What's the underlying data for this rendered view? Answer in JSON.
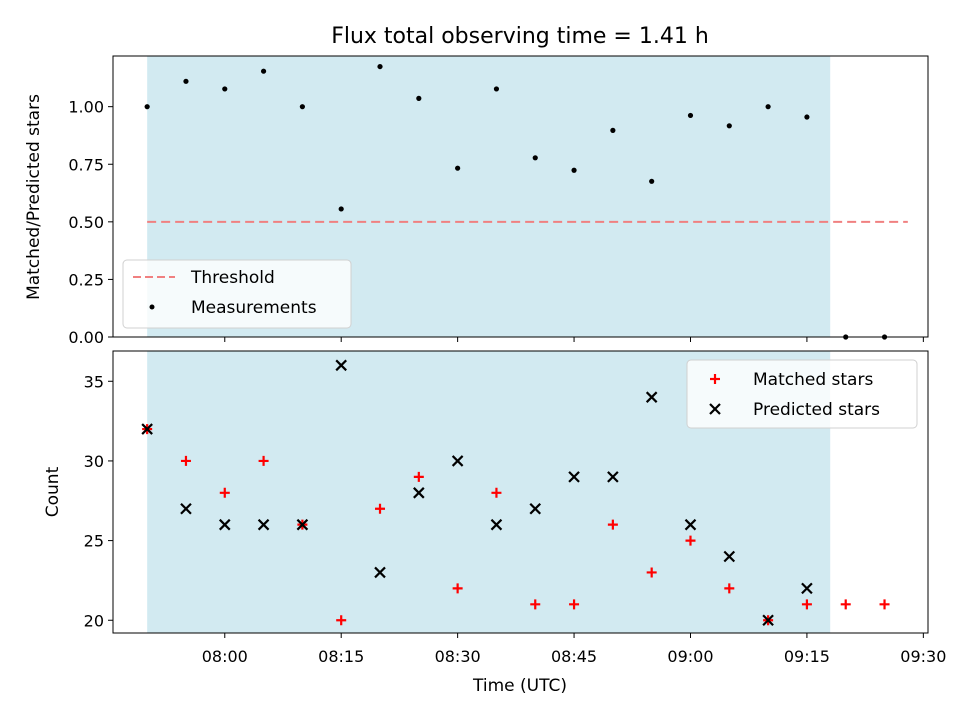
{
  "figure": {
    "title": "Flux total observing time = 1.41 h",
    "xlabel": "Time (UTC)",
    "x_ticks": [
      "08:00",
      "08:15",
      "08:30",
      "08:45",
      "09:00",
      "09:15",
      "09:30"
    ]
  },
  "chart_data": [
    {
      "type": "scatter",
      "title": "Flux total observing time = 1.41 h",
      "ylabel": "Matched/Predicted stars",
      "y_ticks": [
        "0.00",
        "0.25",
        "0.50",
        "0.75",
        "1.00"
      ],
      "ylim": [
        0.0,
        1.22
      ],
      "xlim_minutes_after_0730": [
        15.6,
        120.6
      ],
      "shaded_span": {
        "from": "07:50",
        "to": "09:18",
        "color": "#add8e6"
      },
      "series": [
        {
          "name": "Threshold",
          "style": "dashed line",
          "color": "#f08080",
          "x": [
            "07:50",
            "09:28"
          ],
          "y": [
            0.5,
            0.5
          ]
        },
        {
          "name": "Measurements",
          "style": "points",
          "color": "#000000",
          "x": [
            "07:50",
            "07:55",
            "08:00",
            "08:05",
            "08:10",
            "08:15",
            "08:20",
            "08:25",
            "08:30",
            "08:35",
            "08:40",
            "08:45",
            "08:50",
            "08:55",
            "09:00",
            "09:05",
            "09:10",
            "09:15",
            "09:20",
            "09:25"
          ],
          "y": [
            1.0,
            1.11,
            1.077,
            1.154,
            1.0,
            0.556,
            1.174,
            1.036,
            0.733,
            1.077,
            0.778,
            0.724,
            0.897,
            0.676,
            0.962,
            0.917,
            1.0,
            0.955,
            0.0,
            0.0
          ]
        }
      ],
      "legend": {
        "placement": "lower-left",
        "labels": [
          "Threshold",
          "Measurements"
        ]
      }
    },
    {
      "type": "scatter",
      "ylabel": "Count",
      "y_ticks": [
        "20",
        "25",
        "30",
        "35"
      ],
      "ylim": [
        19.2,
        36.9
      ],
      "xlim_minutes_after_0730": [
        15.6,
        120.6
      ],
      "shaded_span": {
        "from": "07:50",
        "to": "09:18",
        "color": "#add8e6"
      },
      "series": [
        {
          "name": "Matched stars",
          "style": "plus markers",
          "color": "#ff0000",
          "x": [
            "07:50",
            "07:55",
            "08:00",
            "08:05",
            "08:10",
            "08:15",
            "08:20",
            "08:25",
            "08:30",
            "08:35",
            "08:40",
            "08:45",
            "08:50",
            "08:55",
            "09:00",
            "09:05",
            "09:10",
            "09:15",
            "09:20",
            "09:25"
          ],
          "y": [
            32,
            30,
            28,
            30,
            26,
            20,
            27,
            29,
            22,
            28,
            21,
            21,
            26,
            23,
            25,
            22,
            20,
            21,
            21,
            21
          ]
        },
        {
          "name": "Predicted stars",
          "style": "x markers",
          "color": "#000000",
          "x": [
            "07:50",
            "07:55",
            "08:00",
            "08:05",
            "08:10",
            "08:15",
            "08:20",
            "08:25",
            "08:30",
            "08:35",
            "08:40",
            "08:45",
            "08:50",
            "08:55",
            "09:00",
            "09:05",
            "09:10",
            "09:15"
          ],
          "y": [
            32,
            27,
            26,
            26,
            26,
            36,
            23,
            28,
            30,
            26,
            27,
            29,
            29,
            34,
            26,
            24,
            20,
            22
          ]
        }
      ],
      "legend": {
        "placement": "top-right",
        "labels": [
          "Matched stars",
          "Predicted stars"
        ]
      }
    }
  ]
}
